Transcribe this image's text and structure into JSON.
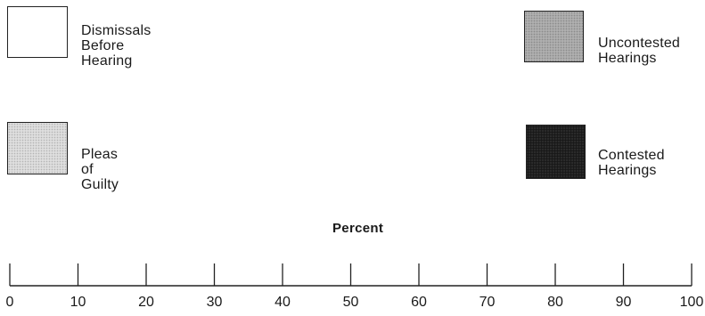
{
  "chart_data": {
    "type": "legend-axis",
    "xlabel": "Percent",
    "x_range": [
      0,
      100
    ],
    "ticks": [
      "0",
      "10",
      "20",
      "30",
      "40",
      "50",
      "60",
      "70",
      "80",
      "90",
      "100"
    ],
    "legend": [
      {
        "label": "Dismissals\nBefore Hearing",
        "fill": "#ffffff"
      },
      {
        "label": "Uncontested\nHearings",
        "fill": "#a9a9a9"
      },
      {
        "label": "Pleas of\nGuilty",
        "fill": "#dcdcdc"
      },
      {
        "label": "Contested\nHearings",
        "fill": "#1c1c1c"
      }
    ]
  }
}
